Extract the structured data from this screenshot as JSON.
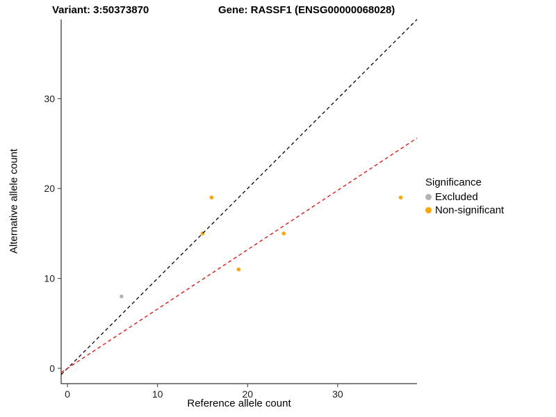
{
  "titles": {
    "variant": "Variant: 3:50373870",
    "gene": "Gene: RASSF1 (ENSG00000068028)"
  },
  "chart_data": {
    "type": "scatter",
    "xlabel": "Reference allele count",
    "ylabel": "Alternative allele count",
    "xlim": [
      -0.7,
      38.8
    ],
    "ylim": [
      -1.7,
      38.8
    ],
    "x_ticks": [
      0,
      10,
      20,
      30
    ],
    "y_ticks": [
      0,
      10,
      20,
      30
    ],
    "grid": false,
    "series": [
      {
        "name": "Excluded",
        "color": "#b3b3b3",
        "points": [
          [
            6,
            8
          ]
        ]
      },
      {
        "name": "Non-significant",
        "color": "#ffa500",
        "points": [
          [
            15,
            15
          ],
          [
            16,
            19
          ],
          [
            19,
            11
          ],
          [
            24,
            15
          ],
          [
            37,
            19
          ]
        ]
      }
    ],
    "lines": [
      {
        "name": "identity-line",
        "slope": 1,
        "intercept": 0,
        "color": "#000000",
        "dashed": true
      },
      {
        "name": "fit-line",
        "slope": 0.66,
        "intercept": 0,
        "color": "#ff0000",
        "dashed": true
      }
    ],
    "legend": {
      "title": "Significance",
      "position": "right",
      "entries": [
        {
          "label": "Excluded",
          "color": "#b3b3b3"
        },
        {
          "label": "Non-significant",
          "color": "#ffa500"
        }
      ]
    }
  }
}
